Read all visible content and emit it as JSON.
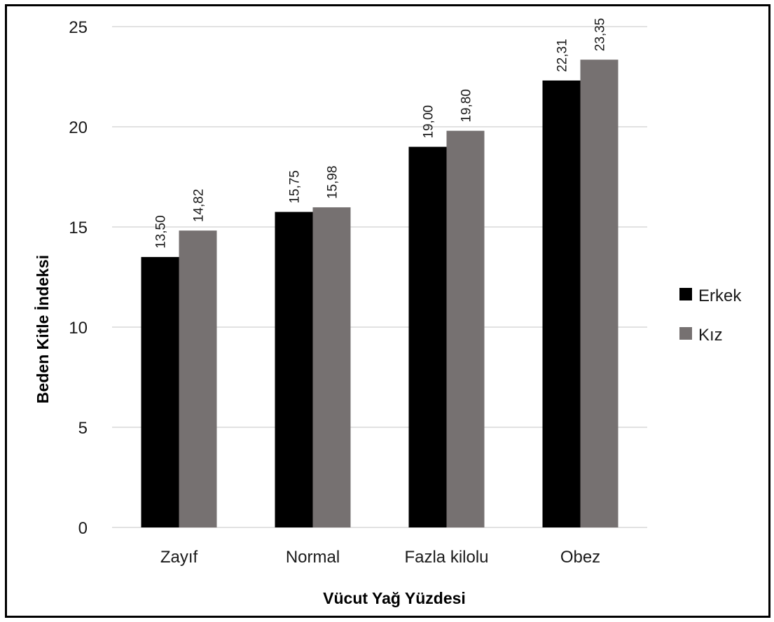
{
  "chart_data": {
    "type": "bar",
    "categories": [
      "Zayıf",
      "Normal",
      "Fazla kilolu",
      "Obez"
    ],
    "series": [
      {
        "name": "Erkek",
        "values": [
          13.5,
          15.75,
          19.0,
          22.31
        ],
        "labels": [
          "13,50",
          "15,75",
          "19,00",
          "22,31"
        ],
        "color": "#000000"
      },
      {
        "name": "Kız",
        "values": [
          14.82,
          15.98,
          19.8,
          23.35
        ],
        "labels": [
          "14,82",
          "15,98",
          "19,80",
          "23,35"
        ],
        "color": "#767171"
      }
    ],
    "xlabel": "Vücut Yağ Yüzdesi",
    "ylabel": "Beden Kitle İndeksi",
    "ylim": [
      0,
      25
    ],
    "yticks": [
      0,
      5,
      10,
      15,
      20,
      25
    ],
    "ytick_labels": [
      "0",
      "5",
      "10",
      "15",
      "20",
      "25"
    ],
    "grid": true,
    "gridline_color": "#d9d9d9",
    "legend_position": "right"
  }
}
